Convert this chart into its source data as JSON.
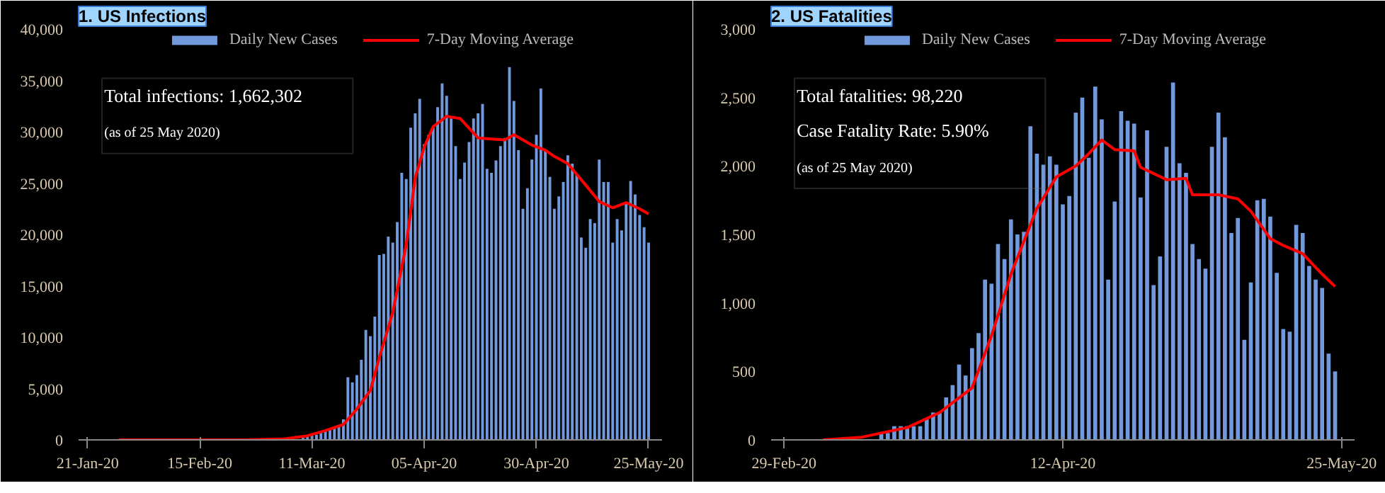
{
  "chart_data": [
    {
      "type": "bar",
      "title": "1. US Infections",
      "legend": "top",
      "grid": false,
      "annotations": [
        "Total infections: 1,662,302",
        "(as of 25 May 2020)"
      ],
      "xlim": [
        "2020-01-19",
        "2020-05-28"
      ],
      "xticks": [
        {
          "value": "2020-01-21",
          "label": "21-Jan-20"
        },
        {
          "value": "2020-02-15",
          "label": "15-Feb-20"
        },
        {
          "value": "2020-03-11",
          "label": "11-Mar-20"
        },
        {
          "value": "2020-04-05",
          "label": "05-Apr-20"
        },
        {
          "value": "2020-04-30",
          "label": "30-Apr-20"
        },
        {
          "value": "2020-05-25",
          "label": "25-May-20"
        }
      ],
      "ylim": [
        0,
        40000
      ],
      "yticks": [
        {
          "value": 0,
          "label": "0"
        },
        {
          "value": 5000,
          "label": "5,000"
        },
        {
          "value": 10000,
          "label": "10,000"
        },
        {
          "value": 15000,
          "label": "15,000"
        },
        {
          "value": 20000,
          "label": "20,000"
        },
        {
          "value": 25000,
          "label": "25,000"
        },
        {
          "value": 30000,
          "label": "30,000"
        },
        {
          "value": 35000,
          "label": "35,000"
        },
        {
          "value": 40000,
          "label": "40,000"
        }
      ],
      "series": [
        {
          "name": "Daily New Cases",
          "color": "#7199dc",
          "x": [
            "2020-03-01",
            "2020-03-02",
            "2020-03-03",
            "2020-03-04",
            "2020-03-05",
            "2020-03-06",
            "2020-03-07",
            "2020-03-08",
            "2020-03-09",
            "2020-03-10",
            "2020-03-11",
            "2020-03-12",
            "2020-03-13",
            "2020-03-14",
            "2020-03-15",
            "2020-03-16",
            "2020-03-17",
            "2020-03-18",
            "2020-03-19",
            "2020-03-20",
            "2020-03-21",
            "2020-03-22",
            "2020-03-23",
            "2020-03-24",
            "2020-03-25",
            "2020-03-26",
            "2020-03-27",
            "2020-03-28",
            "2020-03-29",
            "2020-03-30",
            "2020-03-31",
            "2020-04-01",
            "2020-04-02",
            "2020-04-03",
            "2020-04-04",
            "2020-04-05",
            "2020-04-06",
            "2020-04-07",
            "2020-04-08",
            "2020-04-09",
            "2020-04-10",
            "2020-04-11",
            "2020-04-12",
            "2020-04-13",
            "2020-04-14",
            "2020-04-15",
            "2020-04-16",
            "2020-04-17",
            "2020-04-18",
            "2020-04-19",
            "2020-04-20",
            "2020-04-21",
            "2020-04-22",
            "2020-04-23",
            "2020-04-24",
            "2020-04-25",
            "2020-04-26",
            "2020-04-27",
            "2020-04-28",
            "2020-04-29",
            "2020-04-30",
            "2020-05-01",
            "2020-05-02",
            "2020-05-03",
            "2020-05-04",
            "2020-05-05",
            "2020-05-06",
            "2020-05-07",
            "2020-05-08",
            "2020-05-09",
            "2020-05-10",
            "2020-05-11",
            "2020-05-12",
            "2020-05-13",
            "2020-05-14",
            "2020-05-15",
            "2020-05-16",
            "2020-05-17",
            "2020-05-18",
            "2020-05-19",
            "2020-05-20",
            "2020-05-21",
            "2020-05-22",
            "2020-05-23",
            "2020-05-24",
            "2020-05-25"
          ],
          "values": [
            0,
            0,
            0,
            0,
            0,
            100,
            null,
            null,
            200,
            300,
            400,
            500,
            700,
            900,
            1000,
            1200,
            1400,
            2000,
            6100,
            5600,
            6300,
            7800,
            10700,
            10100,
            12000,
            18000,
            18100,
            19800,
            19200,
            21200,
            26000,
            25400,
            30400,
            31800,
            33200,
            28800,
            29700,
            30400,
            32400,
            34700,
            33500,
            31300,
            28600,
            25400,
            27000,
            29000,
            31300,
            31800,
            32700,
            26400,
            26000,
            27200,
            28600,
            29400,
            36300,
            33000,
            28200,
            22500,
            24500,
            27300,
            29700,
            34200,
            28200,
            25600,
            22500,
            23700,
            25100,
            27700,
            26900,
            25900,
            19700,
            18700,
            21500,
            21100,
            27300,
            25100,
            25100,
            19200,
            21500,
            20400,
            23100,
            25200,
            23900,
            21900,
            20700,
            19200
          ]
        },
        {
          "name": "7-Day Moving Average",
          "type": "line",
          "color": "#ff0000",
          "x": [
            "2020-01-28",
            "2020-02-25",
            "2020-03-05",
            "2020-03-10",
            "2020-03-14",
            "2020-03-18",
            "2020-03-21",
            "2020-03-24",
            "2020-03-26",
            "2020-03-29",
            "2020-04-01",
            "2020-04-03",
            "2020-04-05",
            "2020-04-07",
            "2020-04-10",
            "2020-04-13",
            "2020-04-17",
            "2020-04-20",
            "2020-04-23",
            "2020-04-25",
            "2020-04-29",
            "2020-05-02",
            "2020-05-04",
            "2020-05-07",
            "2020-05-11",
            "2020-05-14",
            "2020-05-17",
            "2020-05-20",
            "2020-05-23",
            "2020-05-25"
          ],
          "values": [
            0,
            0,
            100,
            400,
            900,
            1500,
            3000,
            4800,
            8000,
            12400,
            19000,
            25500,
            28500,
            30500,
            31500,
            31300,
            29400,
            29300,
            29200,
            29700,
            28700,
            28200,
            27600,
            26900,
            24800,
            23200,
            22600,
            23100,
            22500,
            22000
          ]
        }
      ]
    },
    {
      "type": "bar",
      "title": "2. US Fatalities",
      "legend": "top",
      "grid": false,
      "annotations": [
        "Total fatalities: 98,220",
        "Case Fatality Rate: 5.90%",
        "(as of 25 May 2020)"
      ],
      "xlim": [
        "2020-02-27",
        "2020-05-27"
      ],
      "xticks": [
        {
          "value": "2020-02-29",
          "label": "29-Feb-20"
        },
        {
          "value": "2020-04-12",
          "label": "12-Apr-20"
        },
        {
          "value": "2020-05-25",
          "label": "25-May-20"
        }
      ],
      "ylim": [
        0,
        3000
      ],
      "yticks": [
        {
          "value": 0,
          "label": "0"
        },
        {
          "value": 500,
          "label": "500"
        },
        {
          "value": 1000,
          "label": "1,000"
        },
        {
          "value": 1500,
          "label": "1,500"
        },
        {
          "value": 2000,
          "label": "2,000"
        },
        {
          "value": 2500,
          "label": "2,500"
        },
        {
          "value": 3000,
          "label": "3,000"
        }
      ],
      "series": [
        {
          "name": "Daily New Cases",
          "color": "#7199dc",
          "x": [
            "2020-03-01",
            "2020-03-02",
            "2020-03-03",
            "2020-03-04",
            "2020-03-05",
            "2020-03-06",
            "2020-03-07",
            "2020-03-08",
            "2020-03-09",
            "2020-03-10",
            "2020-03-11",
            "2020-03-12",
            "2020-03-13",
            "2020-03-14",
            "2020-03-15",
            "2020-03-16",
            "2020-03-17",
            "2020-03-18",
            "2020-03-19",
            "2020-03-20",
            "2020-03-21",
            "2020-03-22",
            "2020-03-23",
            "2020-03-24",
            "2020-03-25",
            "2020-03-26",
            "2020-03-27",
            "2020-03-28",
            "2020-03-29",
            "2020-03-30",
            "2020-03-31",
            "2020-04-01",
            "2020-04-02",
            "2020-04-03",
            "2020-04-04",
            "2020-04-05",
            "2020-04-06",
            "2020-04-07",
            "2020-04-08",
            "2020-04-09",
            "2020-04-10",
            "2020-04-11",
            "2020-04-12",
            "2020-04-13",
            "2020-04-14",
            "2020-04-15",
            "2020-04-16",
            "2020-04-17",
            "2020-04-18",
            "2020-04-19",
            "2020-04-20",
            "2020-04-21",
            "2020-04-22",
            "2020-04-23",
            "2020-04-24",
            "2020-04-25",
            "2020-04-26",
            "2020-04-27",
            "2020-04-28",
            "2020-04-29",
            "2020-04-30",
            "2020-05-01",
            "2020-05-02",
            "2020-05-03",
            "2020-05-04",
            "2020-05-05",
            "2020-05-06",
            "2020-05-07",
            "2020-05-08",
            "2020-05-09",
            "2020-05-10",
            "2020-05-11",
            "2020-05-12",
            "2020-05-13",
            "2020-05-14",
            "2020-05-15",
            "2020-05-16",
            "2020-05-17",
            "2020-05-18",
            "2020-05-19",
            "2020-05-20",
            "2020-05-21",
            "2020-05-22",
            "2020-05-23",
            "2020-05-24"
          ],
          "values": [
            0,
            0,
            0,
            0,
            0,
            0,
            0,
            0,
            0,
            0,
            0,
            0,
            0,
            0,
            50,
            50,
            100,
            100,
            100,
            100,
            100,
            150,
            200,
            200,
            310,
            400,
            550,
            470,
            670,
            780,
            1170,
            1140,
            1430,
            1320,
            1610,
            1500,
            1520,
            2290,
            2090,
            2010,
            2070,
            2010,
            1720,
            1780,
            2390,
            2500,
            2060,
            2580,
            2340,
            1170,
            1740,
            2400,
            2330,
            2310,
            1770,
            2260,
            1130,
            1340,
            2140,
            2610,
            2020,
            1950,
            1430,
            1320,
            1250,
            2140,
            2390,
            2210,
            1510,
            1620,
            730,
            1150,
            1750,
            1760,
            1630,
            1220,
            810,
            790,
            1570,
            1510,
            1270,
            1170,
            1110,
            630,
            500
          ]
        },
        {
          "name": "7-Day Moving Average",
          "type": "line",
          "color": "#ff0000",
          "x": [
            "2020-03-06",
            "2020-03-12",
            "2020-03-19",
            "2020-03-24",
            "2020-03-29",
            "2020-04-01",
            "2020-04-04",
            "2020-04-08",
            "2020-04-11",
            "2020-04-14",
            "2020-04-16",
            "2020-04-18",
            "2020-04-20",
            "2020-04-23",
            "2020-04-24",
            "2020-04-28",
            "2020-05-01",
            "2020-05-02",
            "2020-05-06",
            "2020-05-09",
            "2020-05-11",
            "2020-05-14",
            "2020-05-16",
            "2020-05-19",
            "2020-05-22",
            "2020-05-24"
          ],
          "values": [
            0,
            20,
            90,
            200,
            380,
            760,
            1210,
            1690,
            1920,
            2000,
            2090,
            2190,
            2120,
            2110,
            1990,
            1900,
            1910,
            1790,
            1790,
            1760,
            1670,
            1470,
            1420,
            1360,
            1210,
            1120
          ]
        }
      ]
    }
  ]
}
